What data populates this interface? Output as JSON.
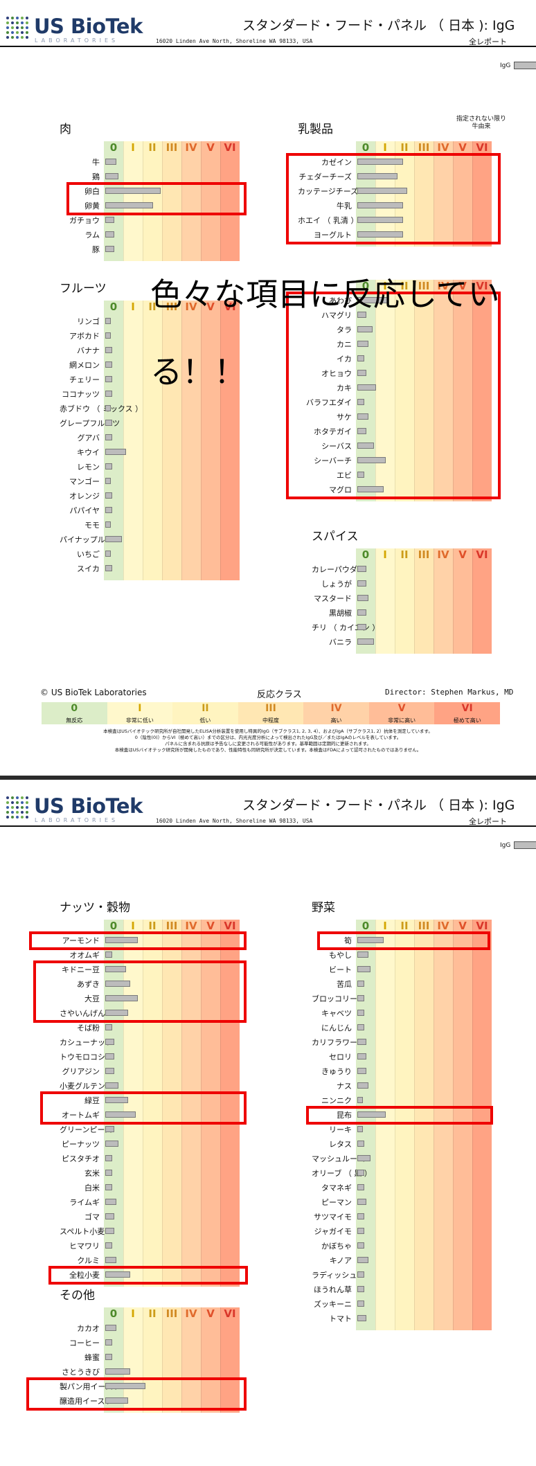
{
  "colors": {
    "logo_text": "#1f3a68",
    "logo_dots": [
      "#2e3f7a",
      "#4a8a3c",
      "#3c5ea8",
      "#6fae4e"
    ],
    "bar_fill": "#bcbcbc",
    "highlight": "#ee0000",
    "class_bands": [
      "#dcedc8",
      "#fff8cc",
      "#fff4c0",
      "#ffe7b3",
      "#ffd2a8",
      "#ffbd98",
      "#ffa384"
    ],
    "class_label_colors": [
      "#4d8a2a",
      "#d4a600",
      "#cc9c1a",
      "#d18a23",
      "#e06b2c",
      "#e0502a",
      "#d9362a"
    ]
  },
  "header": {
    "logo_name": "US BioTek",
    "logo_sub": "LABORATORIES",
    "address": "16020 Linden Ave North, Shoreline WA 98133, USA",
    "title": "スタンダード・フード・パネル （ 日本 ): IgG",
    "subtitle": "全レポート",
    "igg_label": "IgG"
  },
  "class_labels": [
    "0",
    "I",
    "II",
    "III",
    "IV",
    "V",
    "VI"
  ],
  "page1": {
    "note": "指定されない限り\n牛由来",
    "overlay_text": "色々な項目に反応してい\nる！！",
    "sections": [
      {
        "title": "肉",
        "items": [
          {
            "label": "牛",
            "value": 0.5
          },
          {
            "label": "鶏",
            "value": 0.6
          },
          {
            "label": "卵白",
            "value": 2.8
          },
          {
            "label": "卵黄",
            "value": 2.4
          },
          {
            "label": "ガチョウ",
            "value": 0.4
          },
          {
            "label": "ラム",
            "value": 0.4
          },
          {
            "label": "豚",
            "value": 0.4
          }
        ]
      },
      {
        "title": "乳製品",
        "items": [
          {
            "label": "カゼイン",
            "value": 2.3
          },
          {
            "label": "チェダーチーズ",
            "value": 2.0
          },
          {
            "label": "カッテージチーズ",
            "value": 2.5
          },
          {
            "label": "牛乳",
            "value": 2.3
          },
          {
            "label": "ホエイ （ 乳清 ）",
            "value": 2.3
          },
          {
            "label": "ヨーグルト",
            "value": 2.3
          }
        ]
      },
      {
        "title": "フルーツ",
        "items": [
          {
            "label": "リンゴ",
            "value": 0.2
          },
          {
            "label": "アボカド",
            "value": 0.2
          },
          {
            "label": "バナナ",
            "value": 0.3
          },
          {
            "label": "網メロン",
            "value": 0.3
          },
          {
            "label": "チェリー",
            "value": 0.3
          },
          {
            "label": "ココナッツ",
            "value": 0.3
          },
          {
            "label": "赤ブドウ （ ミックス ）",
            "value": 0.2
          },
          {
            "label": "グレープフルーツ",
            "value": 0.3
          },
          {
            "label": "グアバ",
            "value": 0.3
          },
          {
            "label": "キウイ",
            "value": 1.0
          },
          {
            "label": "レモン",
            "value": 0.3
          },
          {
            "label": "マンゴー",
            "value": 0.2
          },
          {
            "label": "オレンジ",
            "value": 0.3
          },
          {
            "label": "パパイヤ",
            "value": 0.3
          },
          {
            "label": "モモ",
            "value": 0.2
          },
          {
            "label": "パイナップル",
            "value": 0.8
          },
          {
            "label": "いちご",
            "value": 0.2
          },
          {
            "label": "スイカ",
            "value": 0.3
          }
        ]
      },
      {
        "title": "シーフード",
        "items": [
          {
            "label": "あわび",
            "value": 1.5
          },
          {
            "label": "ハマグリ",
            "value": 0.4
          },
          {
            "label": "タラ",
            "value": 0.7
          },
          {
            "label": "カニ",
            "value": 0.5
          },
          {
            "label": "イカ",
            "value": 0.3
          },
          {
            "label": "オヒョウ",
            "value": 0.4
          },
          {
            "label": "カキ",
            "value": 0.9
          },
          {
            "label": "バラフエダイ",
            "value": 0.3
          },
          {
            "label": "サケ",
            "value": 0.5
          },
          {
            "label": "ホタテガイ",
            "value": 0.4
          },
          {
            "label": "シーバス",
            "value": 0.8
          },
          {
            "label": "シーバーチ",
            "value": 1.4
          },
          {
            "label": "エビ",
            "value": 0.3
          },
          {
            "label": "マグロ",
            "value": 1.3
          }
        ]
      },
      {
        "title": "スパイス",
        "items": [
          {
            "label": "カレーパウダー",
            "value": 0.4
          },
          {
            "label": "しょうが",
            "value": 0.4
          },
          {
            "label": "マスタード",
            "value": 0.5
          },
          {
            "label": "黒胡椒",
            "value": 0.4
          },
          {
            "label": "チリ （ カイエン ）",
            "value": 0.4
          },
          {
            "label": "バニラ",
            "value": 0.8
          }
        ]
      }
    ],
    "footer": {
      "left": "© US BioTek Laboratories",
      "mid": "反応クラス",
      "right": "Director: Stephen Markus, MD"
    },
    "legend": [
      {
        "num": "0",
        "text": "無反応"
      },
      {
        "num": "I",
        "text": "非常に低い"
      },
      {
        "num": "II",
        "text": "低い"
      },
      {
        "num": "III",
        "text": "中程度"
      },
      {
        "num": "IV",
        "text": "高い"
      },
      {
        "num": "V",
        "text": "非常に高い"
      },
      {
        "num": "VI",
        "text": "極めて高い"
      }
    ],
    "disclaimer": [
      "本検査はUSバイオテック研究所が自社開発したELISA分析装置を使用し特異的IgG（サブクラス1, 2, 3, 4）、およびIgA（サブクラス1, 2）抗体を測定しています。",
      "0（陰性(0)）からVI（極めて高い）までの区分は、内光光度分析によって検出されたIgG及び／またはIgAのレベルを表しています。",
      "パネルに含まれる抗原は予告なしに変更される可能性があります。基準範囲は定期的に更新されます。",
      "本検査はUSバイオテック研究所が開発したものであり、性能特性も同研究所が決定しています。本検査はFDAによって認可されたものではありません。"
    ]
  },
  "page2": {
    "sections": [
      {
        "title": "ナッツ・穀物",
        "items": [
          {
            "label": "アーモンド",
            "value": 1.6
          },
          {
            "label": "オオムギ",
            "value": 0.3
          },
          {
            "label": "キドニー豆",
            "value": 1.0
          },
          {
            "label": "あずき",
            "value": 1.2
          },
          {
            "label": "大豆",
            "value": 1.6
          },
          {
            "label": "さやいんげん",
            "value": 1.1
          },
          {
            "label": "そば粉",
            "value": 0.3
          },
          {
            "label": "カシューナッツ",
            "value": 0.4
          },
          {
            "label": "トウモロコシ",
            "value": 0.4
          },
          {
            "label": "グリアジン",
            "value": 0.4
          },
          {
            "label": "小麦グルテン",
            "value": 0.6
          },
          {
            "label": "緑豆",
            "value": 1.1
          },
          {
            "label": "オートムギ",
            "value": 1.5
          },
          {
            "label": "グリーンピース",
            "value": 0.4
          },
          {
            "label": "ピーナッツ",
            "value": 0.6
          },
          {
            "label": "ピスタチオ",
            "value": 0.3
          },
          {
            "label": "玄米",
            "value": 0.3
          },
          {
            "label": "白米",
            "value": 0.3
          },
          {
            "label": "ライムギ",
            "value": 0.5
          },
          {
            "label": "ゴマ",
            "value": 0.4
          },
          {
            "label": "スペルト小麦",
            "value": 0.4
          },
          {
            "label": "ヒマワリ",
            "value": 0.3
          },
          {
            "label": "クルミ",
            "value": 0.5
          },
          {
            "label": "全粒小麦",
            "value": 1.2
          }
        ]
      },
      {
        "title": "野菜",
        "items": [
          {
            "label": "筍",
            "value": 1.3
          },
          {
            "label": "もやし",
            "value": 0.5
          },
          {
            "label": "ビート",
            "value": 0.6
          },
          {
            "label": "苦瓜",
            "value": 0.3
          },
          {
            "label": "ブロッコリー",
            "value": 0.3
          },
          {
            "label": "キャベツ",
            "value": 0.3
          },
          {
            "label": "にんじん",
            "value": 0.3
          },
          {
            "label": "カリフラワー",
            "value": 0.4
          },
          {
            "label": "セロリ",
            "value": 0.4
          },
          {
            "label": "きゅうり",
            "value": 0.4
          },
          {
            "label": "ナス",
            "value": 0.5
          },
          {
            "label": "ニンニク",
            "value": 0.2
          },
          {
            "label": "昆布",
            "value": 1.4
          },
          {
            "label": "リーキ",
            "value": 0.2
          },
          {
            "label": "レタス",
            "value": 0.3
          },
          {
            "label": "マッシュルーム",
            "value": 0.6
          },
          {
            "label": "オリーブ （ 黒 ）",
            "value": 0.3
          },
          {
            "label": "タマネギ",
            "value": 0.3
          },
          {
            "label": "ピーマン",
            "value": 0.4
          },
          {
            "label": "サツマイモ",
            "value": 0.3
          },
          {
            "label": "ジャガイモ",
            "value": 0.3
          },
          {
            "label": "かぼちゃ",
            "value": 0.3
          },
          {
            "label": "キノア",
            "value": 0.5
          },
          {
            "label": "ラディッシュ",
            "value": 0.3
          },
          {
            "label": "ほうれん草",
            "value": 0.3
          },
          {
            "label": "ズッキーニ",
            "value": 0.3
          },
          {
            "label": "トマト",
            "value": 0.4
          }
        ]
      },
      {
        "title": "その他",
        "items": [
          {
            "label": "カカオ",
            "value": 0.5
          },
          {
            "label": "コーヒー",
            "value": 0.3
          },
          {
            "label": "蜂蜜",
            "value": 0.3
          },
          {
            "label": "さとうきび",
            "value": 1.2
          },
          {
            "label": "製パン用イースト",
            "value": 2.0
          },
          {
            "label": "醸造用イースト",
            "value": 1.1
          }
        ]
      }
    ]
  }
}
